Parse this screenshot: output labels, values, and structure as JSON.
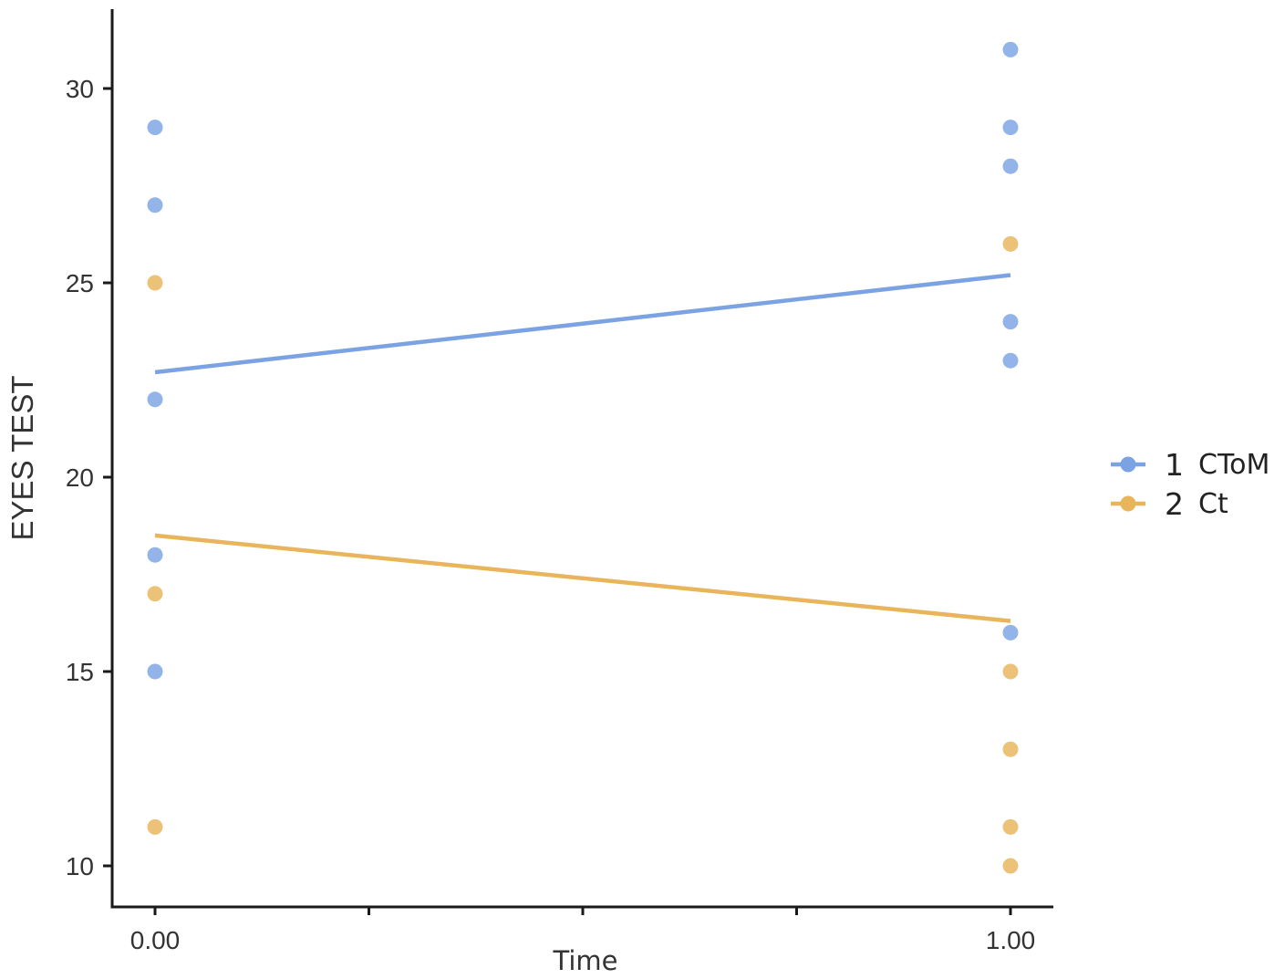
{
  "chart_data": {
    "type": "scatter",
    "xlabel": "Time",
    "ylabel": "EYES TEST",
    "xlim": [
      -0.05,
      1.05
    ],
    "ylim": [
      9.0,
      32.0
    ],
    "xticks": [
      0,
      0.25,
      0.5,
      0.75,
      1
    ],
    "x_tick_labels": [
      "0.00",
      "",
      "",
      "",
      "1.00"
    ],
    "yticks": [
      10,
      15,
      20,
      25,
      30
    ],
    "y_tick_labels": [
      "10",
      "15",
      "20",
      "25",
      "30"
    ],
    "grid": false,
    "legend_position": "right",
    "series": [
      {
        "name": "CToM",
        "legend_number": "1",
        "legend_text": "CToM",
        "color": "#7ba3e3",
        "points": [
          {
            "x": 0,
            "y": 29
          },
          {
            "x": 0,
            "y": 27
          },
          {
            "x": 0,
            "y": 22
          },
          {
            "x": 0,
            "y": 18
          },
          {
            "x": 0,
            "y": 15
          },
          {
            "x": 1,
            "y": 31
          },
          {
            "x": 1,
            "y": 29
          },
          {
            "x": 1,
            "y": 28
          },
          {
            "x": 1,
            "y": 24
          },
          {
            "x": 1,
            "y": 23
          },
          {
            "x": 1,
            "y": 16
          }
        ],
        "trend": {
          "x": [
            0,
            1
          ],
          "y": [
            22.7,
            25.2
          ]
        }
      },
      {
        "name": "Ct",
        "legend_number": "2",
        "legend_text": "Ct",
        "color": "#e8b55a",
        "points": [
          {
            "x": 0,
            "y": 25
          },
          {
            "x": 0,
            "y": 17
          },
          {
            "x": 0,
            "y": 11
          },
          {
            "x": 1,
            "y": 26
          },
          {
            "x": 1,
            "y": 15
          },
          {
            "x": 1,
            "y": 13
          },
          {
            "x": 1,
            "y": 11
          },
          {
            "x": 1,
            "y": 10
          }
        ],
        "trend": {
          "x": [
            0,
            1
          ],
          "y": [
            18.5,
            16.3
          ]
        }
      }
    ]
  }
}
